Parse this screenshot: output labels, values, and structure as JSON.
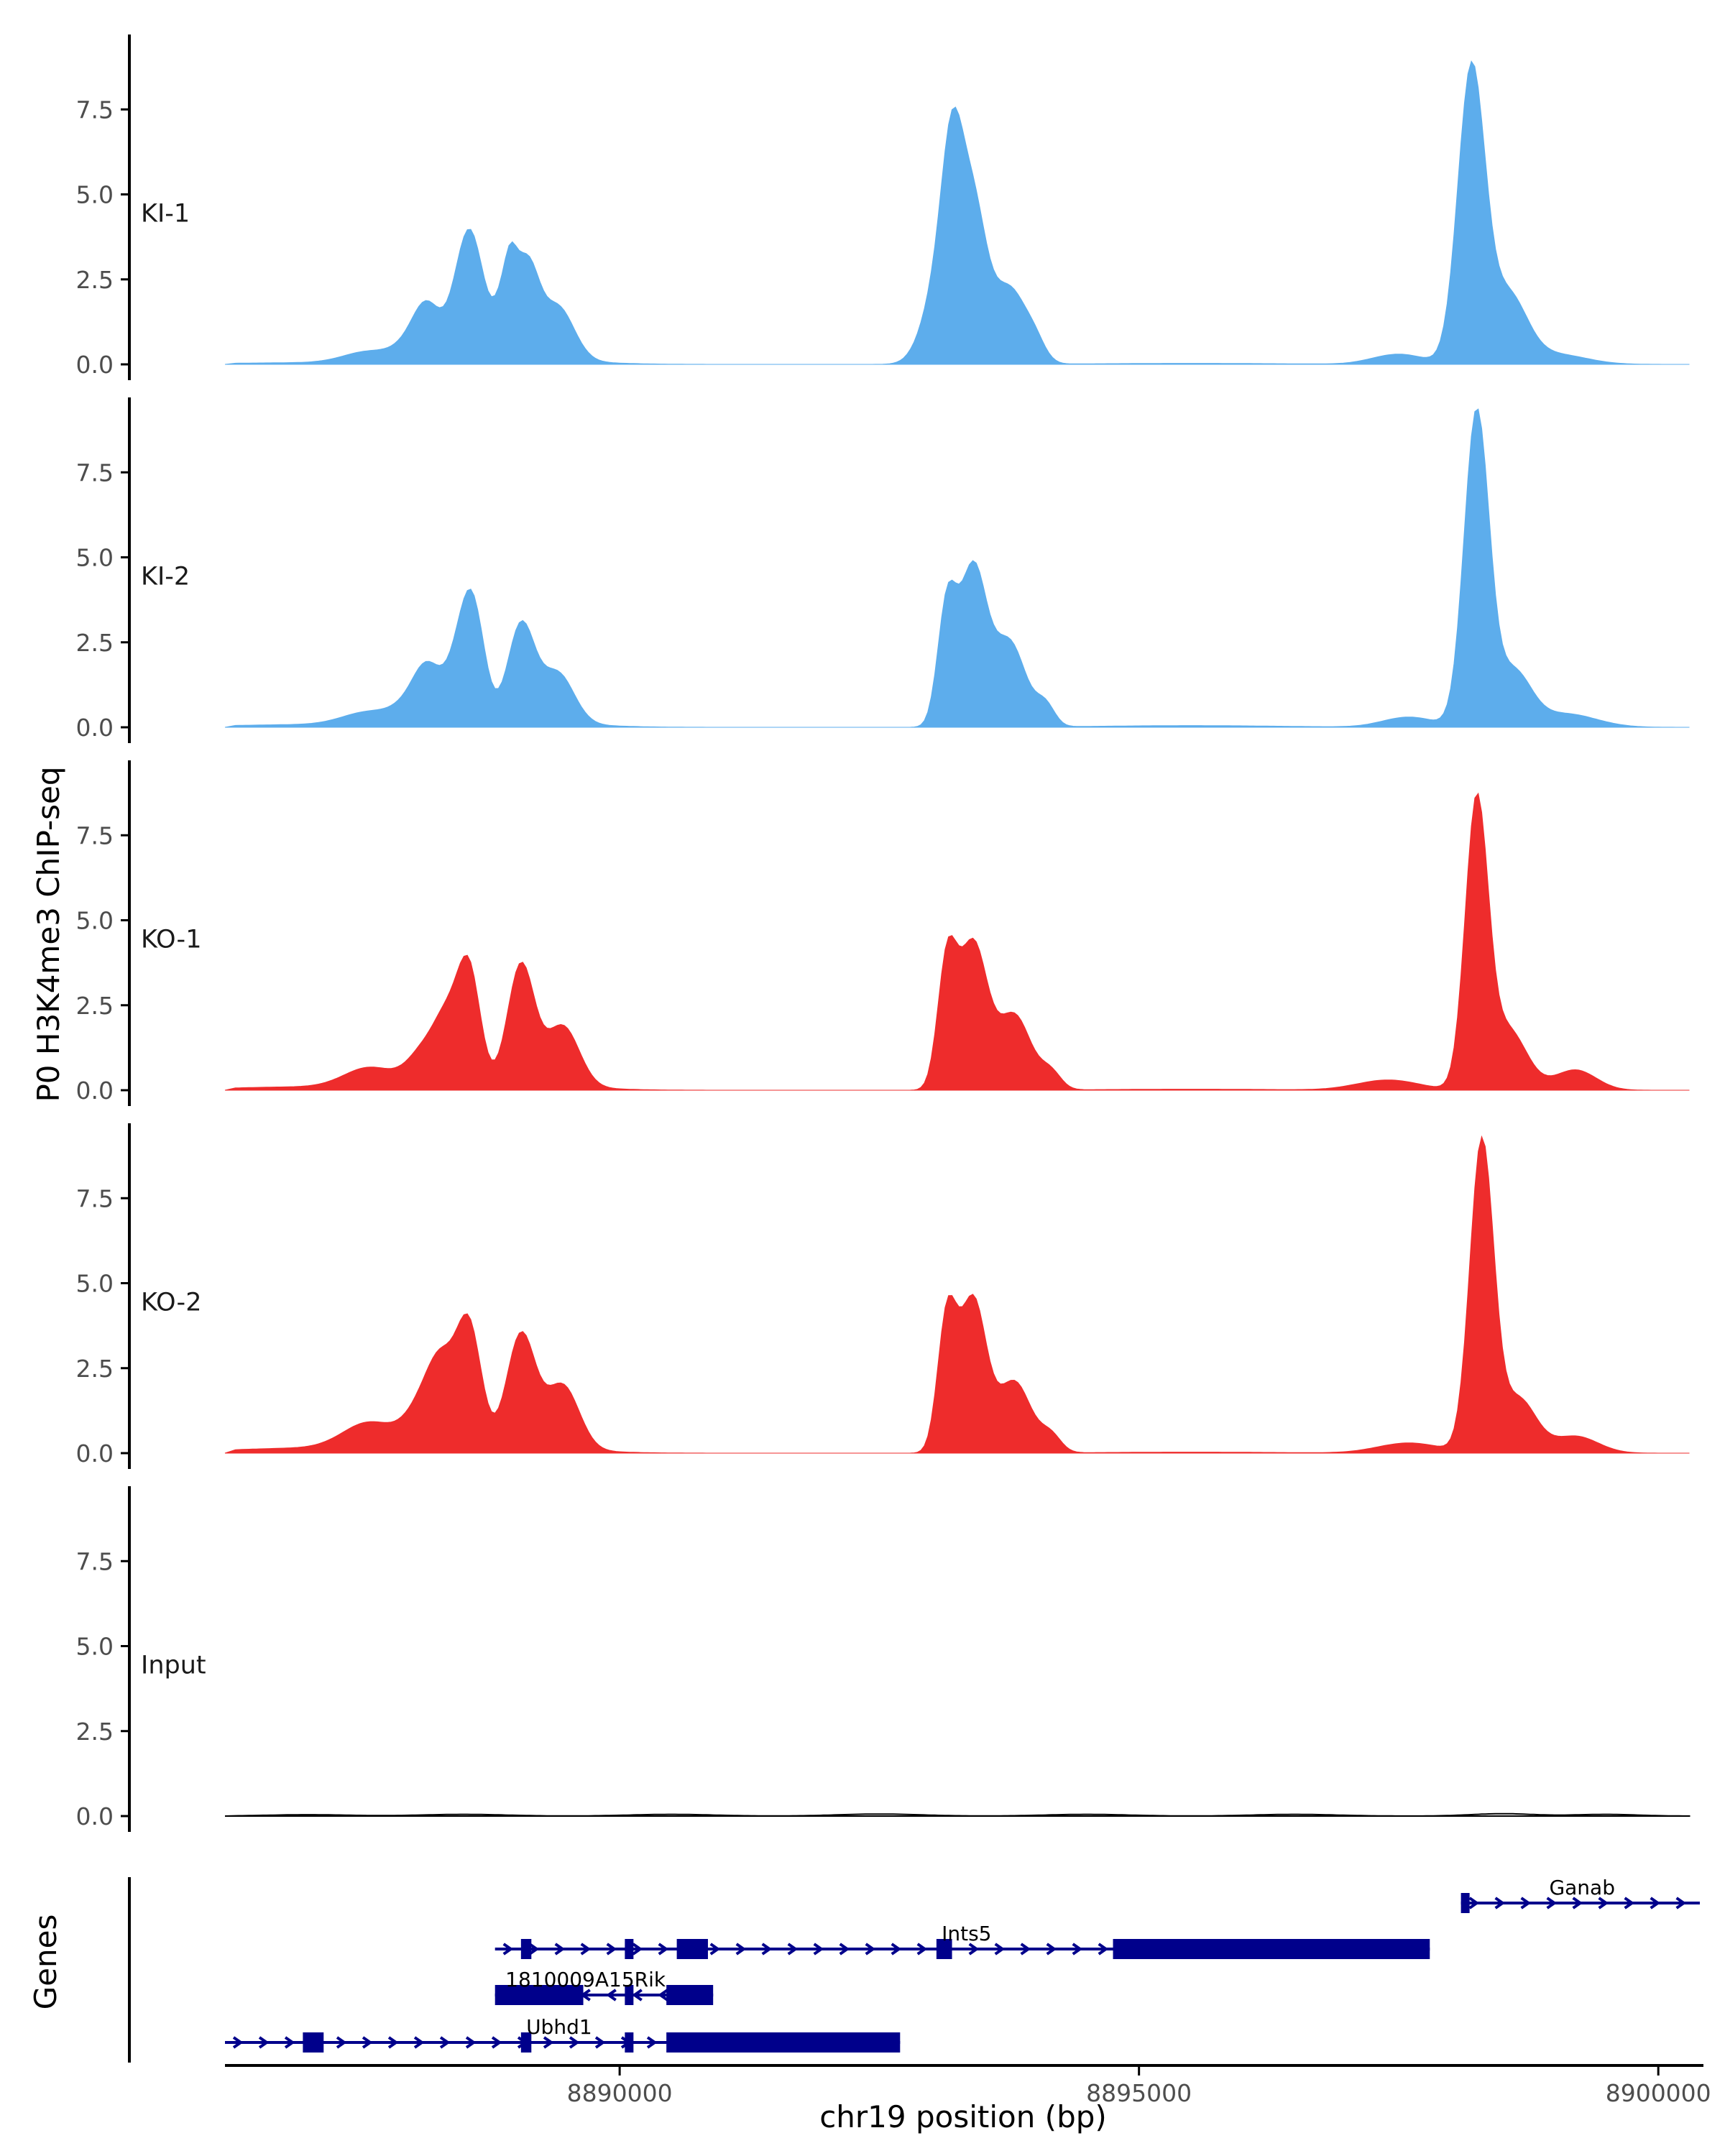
{
  "chart_data": {
    "type": "area",
    "ylabel": "P0 H3K4me3 ChIP-seq",
    "xlabel": "chr19 position (bp)",
    "xlim": [
      8886200,
      8900400
    ],
    "ylim": [
      0,
      9.8
    ],
    "yticks": [
      "0.0",
      "2.5",
      "5.0",
      "7.5"
    ],
    "xticks": [
      {
        "value": 8890000,
        "label": "8890000"
      },
      {
        "value": 8895000,
        "label": "8895000"
      },
      {
        "value": 8900000,
        "label": "8900000"
      }
    ],
    "colors": {
      "KI": "#5DADEC",
      "KO": "#EE2C2C",
      "Input": "#000000",
      "gene": "#00008B",
      "axis": "#000000",
      "tick_text": "#4D4D4D"
    },
    "tracks": [
      {
        "name": "KI-1",
        "color": "#5DADEC",
        "peaks": [
          [
            8887000,
            0.05,
            800
          ],
          [
            8887600,
            0.35,
            250
          ],
          [
            8888100,
            1.0,
            180
          ],
          [
            8888500,
            2.2,
            130
          ],
          [
            8888900,
            0.6,
            80
          ],
          [
            8888600,
            2.0,
            120
          ],
          [
            8888150,
            0.8,
            120
          ],
          [
            8889300,
            0.1,
            500
          ],
          [
            8889000,
            2.5,
            150
          ],
          [
            8889400,
            1.6,
            160
          ],
          [
            8889150,
            1.0,
            90
          ],
          [
            8888950,
            0.5,
            50
          ],
          [
            8893100,
            2.6,
            160
          ],
          [
            8893400,
            4.4,
            130
          ],
          [
            8893750,
            2.2,
            160
          ],
          [
            8894000,
            0.5,
            100
          ],
          [
            8893200,
            4.0,
            100
          ],
          [
            8897500,
            0.3,
            250
          ],
          [
            8898200,
            8.6,
            130
          ],
          [
            8898550,
            2.0,
            180
          ],
          [
            8899000,
            0.3,
            300
          ],
          [
            8895500,
            0.03,
            900
          ]
        ]
      },
      {
        "name": "KI-2",
        "color": "#5DADEC",
        "peaks": [
          [
            8887000,
            0.08,
            800
          ],
          [
            8887600,
            0.4,
            260
          ],
          [
            8888100,
            1.0,
            190
          ],
          [
            8888500,
            2.3,
            140
          ],
          [
            8888600,
            2.0,
            110
          ],
          [
            8888150,
            0.8,
            120
          ],
          [
            8889300,
            0.1,
            500
          ],
          [
            8889050,
            2.9,
            130
          ],
          [
            8889400,
            1.5,
            160
          ],
          [
            8893150,
            3.4,
            90
          ],
          [
            8893400,
            4.6,
            130
          ],
          [
            8893750,
            2.5,
            160
          ],
          [
            8894100,
            0.6,
            90
          ],
          [
            8897600,
            0.3,
            250
          ],
          [
            8898250,
            9.2,
            120
          ],
          [
            8898600,
            1.6,
            170
          ],
          [
            8899100,
            0.4,
            300
          ],
          [
            8895500,
            0.05,
            900
          ]
        ]
      },
      {
        "name": "KO-1",
        "color": "#EE2C2C",
        "peaks": [
          [
            8887000,
            0.1,
            800
          ],
          [
            8887600,
            0.6,
            250
          ],
          [
            8888150,
            1.2,
            170
          ],
          [
            8888550,
            3.4,
            110
          ],
          [
            8888350,
            1.5,
            120
          ],
          [
            8889300,
            0.1,
            500
          ],
          [
            8889050,
            3.6,
            130
          ],
          [
            8889450,
            1.8,
            160
          ],
          [
            8893150,
            3.5,
            90
          ],
          [
            8893400,
            4.3,
            140
          ],
          [
            8893800,
            2.2,
            160
          ],
          [
            8894150,
            0.5,
            100
          ],
          [
            8897400,
            0.3,
            300
          ],
          [
            8898250,
            8.3,
            110
          ],
          [
            8898550,
            1.8,
            180
          ],
          [
            8899200,
            0.6,
            200
          ],
          [
            8895500,
            0.03,
            900
          ]
        ]
      },
      {
        "name": "KO-2",
        "color": "#EE2C2C",
        "peaks": [
          [
            8887000,
            0.15,
            800
          ],
          [
            8887600,
            0.8,
            260
          ],
          [
            8888150,
            1.5,
            180
          ],
          [
            8888550,
            3.6,
            120
          ],
          [
            8888300,
            1.6,
            130
          ],
          [
            8889300,
            0.1,
            500
          ],
          [
            8889050,
            3.4,
            140
          ],
          [
            8889450,
            1.9,
            160
          ],
          [
            8893150,
            3.8,
            90
          ],
          [
            8893400,
            4.5,
            130
          ],
          [
            8893800,
            2.1,
            160
          ],
          [
            8894150,
            0.5,
            100
          ],
          [
            8897600,
            0.3,
            300
          ],
          [
            8898300,
            9.1,
            115
          ],
          [
            8898650,
            1.6,
            170
          ],
          [
            8899200,
            0.5,
            220
          ],
          [
            8895500,
            0.03,
            900
          ]
        ]
      },
      {
        "name": "Input",
        "color": "#000000",
        "peaks": [
          [
            8887000,
            0.04,
            400
          ],
          [
            8888500,
            0.05,
            400
          ],
          [
            8890500,
            0.05,
            400
          ],
          [
            8892500,
            0.06,
            400
          ],
          [
            8894500,
            0.05,
            400
          ],
          [
            8896500,
            0.05,
            400
          ],
          [
            8898500,
            0.07,
            300
          ],
          [
            8899500,
            0.05,
            300
          ]
        ]
      }
    ],
    "genes_label": "Genes",
    "genes": [
      {
        "name": "Ganab",
        "strand": "+",
        "row": 1,
        "start": 8898100,
        "end": 8900400,
        "label_pos": 8898950,
        "exons": [
          [
            8898100,
            8898180
          ]
        ]
      },
      {
        "name": "Ints5",
        "strand": "+",
        "row": 2,
        "start": 8888800,
        "end": 8897800,
        "label_pos": 8893100,
        "exons": [
          [
            8889050,
            8889150
          ],
          [
            8890050,
            8890130
          ],
          [
            8890550,
            8890850
          ],
          [
            8893050,
            8893200
          ],
          [
            8894750,
            8897800
          ]
        ]
      },
      {
        "name": "1810009A15Rik",
        "strand": "-",
        "row": 3,
        "start": 8888800,
        "end": 8890900,
        "label_pos": 8888900,
        "exons": [
          [
            8888800,
            8889650
          ],
          [
            8890050,
            8890130
          ],
          [
            8890450,
            8890900
          ]
        ]
      },
      {
        "name": "Ubhd1",
        "strand": "+",
        "row": 4,
        "start": 8886200,
        "end": 8892700,
        "label_pos": 8889100,
        "exons": [
          [
            8886950,
            8887150
          ],
          [
            8889050,
            8889150
          ],
          [
            8890050,
            8890130
          ],
          [
            8890450,
            8892700
          ]
        ]
      }
    ]
  }
}
